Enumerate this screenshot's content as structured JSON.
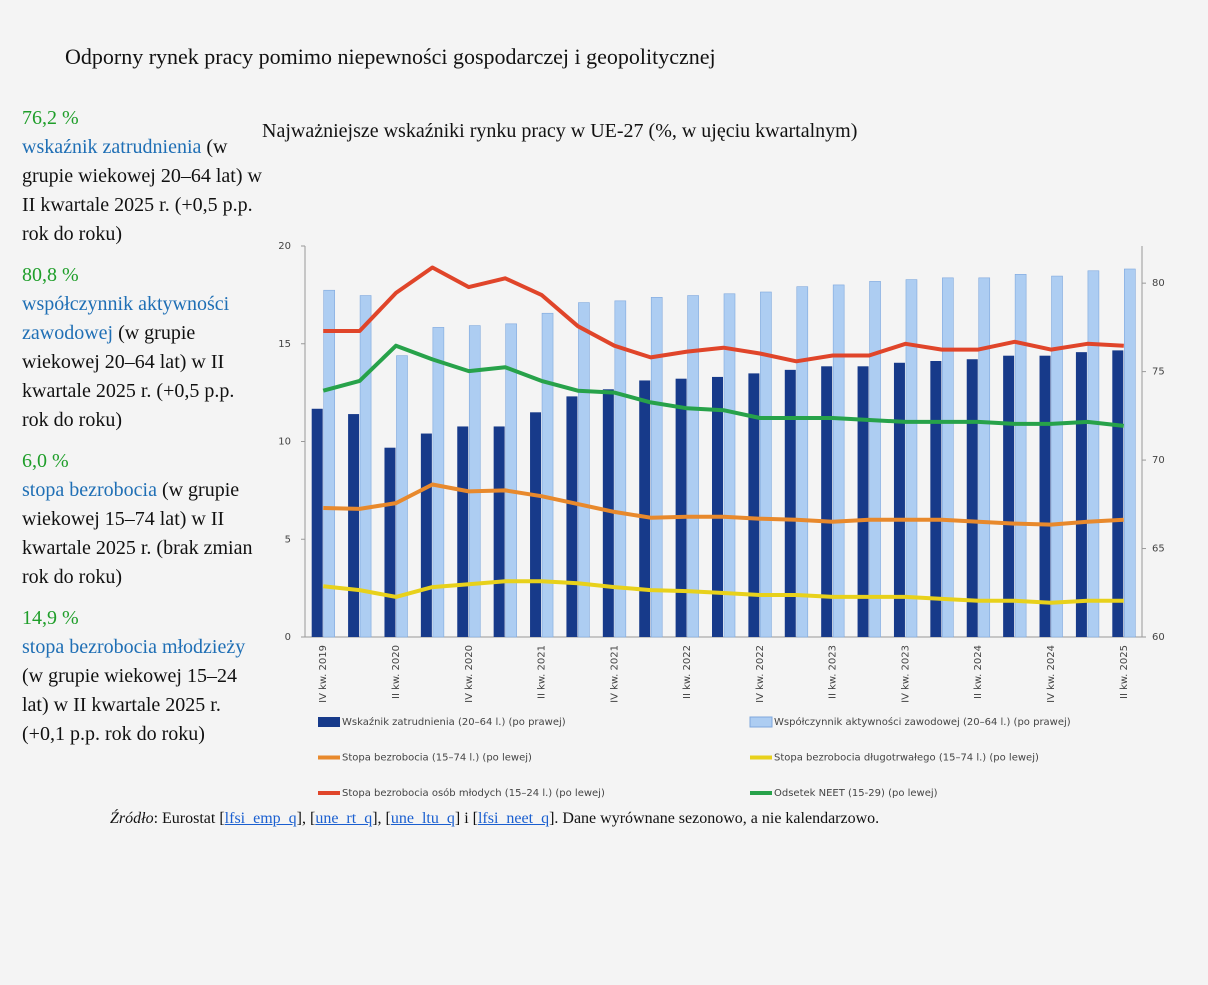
{
  "title": "Odporny rynek pracy pomimo niepewności gospodarczej i geopolitycznej",
  "stats": [
    {
      "value": "76,2 %",
      "label": "wskaźnik zatrudnienia",
      "text": "(w grupie wiekowej 20–64 lat) w II kwartale 2025 r. (+0,5 p.p. rok do roku)"
    },
    {
      "value": "80,8 %",
      "label": "współczynnik aktywności zawodowej",
      "text": "(w grupie wiekowej 20–64 lat) w II kwartale 2025 r. (+0,5 p.p. rok do roku)"
    },
    {
      "value": "6,0 %",
      "label": "stopa bezrobocia",
      "text": "(w grupie wiekowej 15–74 lat) w II kwartale 2025 r. (brak zmian rok do roku)"
    },
    {
      "value": "14,9 %",
      "label": "stopa bezrobocia młodzieży",
      "text": "(w grupie wiekowej 15–24 lat) w II kwartale 2025 r. (+0,1 p.p. rok do roku)"
    }
  ],
  "chart_data": {
    "type": "combo",
    "title": "Najważniejsze wskaźniki rynku pracy w UE-27 (%, w ujęciu kwartalnym)",
    "categories": [
      "IV kw. 2019",
      null,
      "II kw. 2020",
      null,
      "IV kw. 2020",
      null,
      "II kw. 2021",
      null,
      "IV kw. 2021",
      null,
      "II kw. 2022",
      null,
      "IV kw. 2022",
      null,
      "II kw. 2023",
      null,
      "IV kw. 2023",
      null,
      "II kw. 2024",
      null,
      "IV kw. 2024",
      null,
      "II kw. 2025"
    ],
    "ylim": [
      0,
      20
    ],
    "yticks": [
      0,
      5,
      10,
      15,
      20
    ],
    "y2lim": [
      60,
      82.1
    ],
    "y2ticks": [
      60,
      65,
      70,
      75,
      80
    ],
    "grid": false,
    "series": [
      {
        "name": "Wskaźnik zatrudnienia (20–64 l.) (po prawej)",
        "type": "bar",
        "axis": "y2",
        "color": "#173a8a",
        "values": [
          72.9,
          72.6,
          70.7,
          71.5,
          71.9,
          71.9,
          72.7,
          73.6,
          74.0,
          74.5,
          74.6,
          74.7,
          74.9,
          75.1,
          75.3,
          75.3,
          75.5,
          75.6,
          75.7,
          75.9,
          75.9,
          76.1,
          76.2
        ]
      },
      {
        "name": "Współczynnik aktywności zawodowej (20–64 l.) (po prawej)",
        "type": "bar",
        "axis": "y2",
        "color": "#adcdf2",
        "values": [
          79.6,
          79.3,
          75.9,
          77.5,
          77.6,
          77.7,
          78.3,
          78.9,
          79.0,
          79.2,
          79.3,
          79.4,
          79.5,
          79.8,
          79.9,
          80.1,
          80.2,
          80.3,
          80.3,
          80.5,
          80.4,
          80.7,
          80.8
        ]
      },
      {
        "name": "Stopa bezrobocia (15–74 l.) (po lewej)",
        "type": "line",
        "color": "#e8892c",
        "values": [
          6.6,
          6.55,
          6.85,
          7.8,
          7.45,
          7.5,
          7.2,
          6.8,
          6.4,
          6.1,
          6.15,
          6.15,
          6.05,
          6.0,
          5.9,
          6.0,
          6.0,
          6.0,
          5.9,
          5.8,
          5.75,
          5.9,
          6.0
        ]
      },
      {
        "name": "Stopa bezrobocia długotrwałego (15–74 l.) (po lewej)",
        "type": "line",
        "color": "#e8d11b",
        "values": [
          2.6,
          2.4,
          2.05,
          2.55,
          2.7,
          2.85,
          2.85,
          2.75,
          2.55,
          2.4,
          2.35,
          2.25,
          2.15,
          2.15,
          2.05,
          2.05,
          2.05,
          1.95,
          1.85,
          1.85,
          1.75,
          1.85,
          1.85
        ]
      },
      {
        "name": "Stopa bezrobocia osób młodych (15–24 l.) (po lewej)",
        "type": "line",
        "color": "#e0452a",
        "values": [
          15.65,
          15.65,
          17.6,
          18.9,
          17.9,
          18.35,
          17.5,
          15.9,
          14.9,
          14.3,
          14.6,
          14.8,
          14.5,
          14.1,
          14.4,
          14.4,
          15.0,
          14.7,
          14.7,
          15.1,
          14.7,
          15.0,
          14.9
        ]
      },
      {
        "name": "Odsetek NEET (15-29) (po lewej)",
        "type": "line",
        "color": "#27a24a",
        "values": [
          12.6,
          13.1,
          14.9,
          14.2,
          13.6,
          13.8,
          13.1,
          12.6,
          12.5,
          12.0,
          11.7,
          11.6,
          11.2,
          11.2,
          11.2,
          11.1,
          11.0,
          11.0,
          11.0,
          10.9,
          10.9,
          11.0,
          10.8
        ]
      }
    ]
  },
  "source": {
    "label": "Źródło",
    "prefix": ": Eurostat [",
    "links": [
      "lfsi_emp_q",
      "une_rt_q",
      "une_ltu_q",
      "lfsi_neet_q"
    ],
    "separators": [
      "], [",
      "], [",
      "] i [",
      "]. Dane wyrównane sezonowo, a nie kalendarzowo."
    ]
  }
}
